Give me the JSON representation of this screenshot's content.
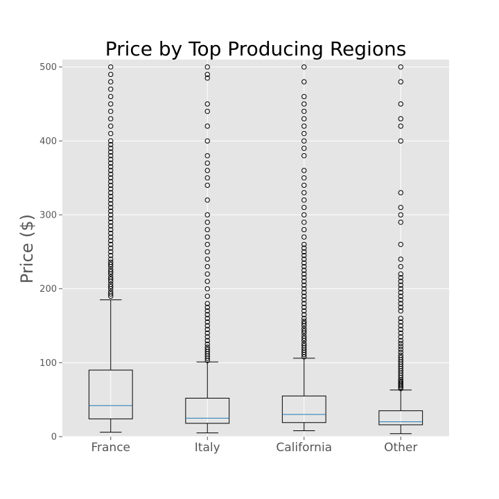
{
  "chart_data": {
    "type": "box",
    "title": "Price by Top Producing Regions",
    "xlabel": "",
    "ylabel": "Price ($)",
    "ylim": [
      0,
      510
    ],
    "yticks": [
      0,
      100,
      200,
      300,
      400,
      500
    ],
    "grid": true,
    "categories": [
      "France",
      "Italy",
      "California",
      "Other"
    ],
    "boxes": [
      {
        "category": "France",
        "whisker_low": 6,
        "q1": 24,
        "median": 42,
        "q3": 90,
        "whisker_high": 185,
        "outliers": [
          190,
          193,
          196,
          200,
          203,
          206,
          210,
          213,
          216,
          220,
          223,
          226,
          230,
          233,
          236,
          240,
          245,
          250,
          255,
          260,
          265,
          270,
          275,
          280,
          285,
          290,
          295,
          300,
          305,
          310,
          315,
          320,
          325,
          330,
          335,
          340,
          345,
          350,
          355,
          360,
          365,
          370,
          375,
          380,
          385,
          390,
          395,
          400,
          410,
          420,
          430,
          440,
          450,
          460,
          470,
          480,
          490,
          500
        ]
      },
      {
        "category": "Italy",
        "whisker_low": 5,
        "q1": 18,
        "median": 25,
        "q3": 52,
        "whisker_high": 101,
        "outliers": [
          103,
          106,
          109,
          112,
          115,
          118,
          121,
          125,
          130,
          135,
          140,
          145,
          150,
          155,
          160,
          165,
          170,
          175,
          180,
          190,
          200,
          210,
          220,
          230,
          240,
          250,
          260,
          270,
          280,
          290,
          300,
          320,
          340,
          350,
          360,
          370,
          380,
          400,
          420,
          440,
          450,
          485,
          490,
          500
        ]
      },
      {
        "category": "California",
        "whisker_low": 8,
        "q1": 19,
        "median": 30,
        "q3": 55,
        "whisker_high": 106,
        "outliers": [
          108,
          111,
          114,
          117,
          120,
          123,
          126,
          130,
          133,
          136,
          140,
          143,
          146,
          150,
          153,
          156,
          160,
          165,
          170,
          175,
          180,
          185,
          190,
          195,
          200,
          205,
          210,
          215,
          220,
          225,
          230,
          235,
          240,
          245,
          250,
          255,
          260,
          270,
          280,
          290,
          300,
          310,
          320,
          330,
          340,
          350,
          360,
          380,
          390,
          400,
          410,
          420,
          430,
          440,
          450,
          460,
          480,
          500
        ]
      },
      {
        "category": "Other",
        "whisker_low": 4,
        "q1": 16,
        "median": 20,
        "q3": 35,
        "whisker_high": 63,
        "outliers": [
          65,
          67,
          69,
          71,
          73,
          75,
          77,
          80,
          83,
          86,
          89,
          92,
          95,
          98,
          101,
          104,
          107,
          110,
          114,
          118,
          122,
          126,
          130,
          135,
          140,
          145,
          150,
          155,
          160,
          170,
          175,
          180,
          185,
          190,
          195,
          200,
          205,
          210,
          215,
          220,
          230,
          240,
          260,
          290,
          300,
          310,
          330,
          400,
          420,
          430,
          450,
          480,
          500
        ]
      }
    ],
    "colors": {
      "plot_background": "#e5e5e5",
      "grid": "#ffffff",
      "box": "#000000",
      "median": "#1f77b4",
      "outlier_edge": "#000000"
    }
  }
}
